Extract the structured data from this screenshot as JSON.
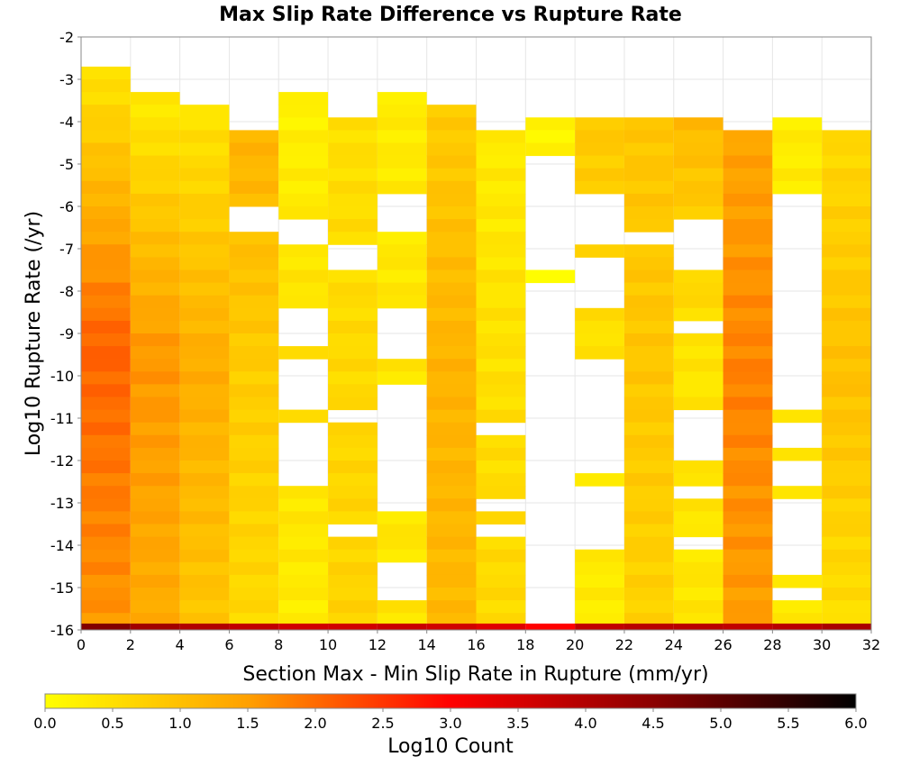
{
  "chart_data": {
    "type": "heatmap",
    "title": "Max Slip Rate Difference vs Rupture Rate",
    "xlabel": "Section Max - Min Slip Rate in Rupture (mm/yr)",
    "ylabel": "Log10 Rupture Rate (/yr)",
    "xlim": [
      0,
      32
    ],
    "ylim": [
      -16,
      -2
    ],
    "x_ticks": [
      "0",
      "2",
      "4",
      "6",
      "8",
      "10",
      "12",
      "14",
      "16",
      "18",
      "20",
      "22",
      "24",
      "26",
      "28",
      "30",
      "32"
    ],
    "y_ticks": [
      "-2",
      "-3",
      "-4",
      "-5",
      "-6",
      "-7",
      "-8",
      "-9",
      "-10",
      "-11",
      "-12",
      "-13",
      "-14",
      "-15",
      "-16"
    ],
    "x_bin_width": 2,
    "y_bin_width": 0.3,
    "grid": true,
    "colorbar": {
      "label": "Log10 Count",
      "min": 0.0,
      "max": 6.0,
      "ticks": [
        "0.0",
        "0.5",
        "1.0",
        "1.5",
        "2.0",
        "2.5",
        "3.0",
        "3.5",
        "4.0",
        "4.5",
        "5.0",
        "5.5",
        "6.0"
      ],
      "colors": [
        "#ffff00",
        "#ffa000",
        "#ff0000",
        "#8b0000",
        "#000000"
      ]
    },
    "columns": [
      {
        "x_bin": [
          0,
          2
        ],
        "y_top": -2.7,
        "y_bottom": -16,
        "gaps": [],
        "log10_count_top": 0.4,
        "log10_count_mid": 2.1,
        "log10_count_bottom": 1.6
      },
      {
        "x_bin": [
          2,
          4
        ],
        "y_top": -3.3,
        "y_bottom": -16,
        "gaps": [],
        "log10_count_top": 0.3,
        "log10_count_mid": 1.6,
        "log10_count_bottom": 1.3
      },
      {
        "x_bin": [
          4,
          6
        ],
        "y_top": -3.6,
        "y_bottom": -16,
        "gaps": [],
        "log10_count_top": 0.4,
        "log10_count_mid": 1.3,
        "log10_count_bottom": 0.9
      },
      {
        "x_bin": [
          6,
          8
        ],
        "y_top": -4.2,
        "y_bottom": -16,
        "gaps": [
          [
            -6.0,
            -6.7
          ]
        ],
        "log10_count_top": 1.2,
        "log10_count_mid": 0.8,
        "log10_count_bottom": 0.6
      },
      {
        "x_bin": [
          8,
          10
        ],
        "y_top": -3.3,
        "y_bottom": -16,
        "gaps": [
          [
            -6.2,
            -7.0
          ],
          [
            -8.4,
            -9.3
          ],
          [
            -9.6,
            -10.7
          ],
          [
            -11.1,
            -12.6
          ]
        ],
        "log10_count_top": 0.2,
        "log10_count_mid": 0.5,
        "log10_count_bottom": 0.3
      },
      {
        "x_bin": [
          10,
          12
        ],
        "y_top": -3.9,
        "y_bottom": -16,
        "gaps": [
          [
            -7.0,
            -7.6
          ],
          [
            -10.7,
            -11.0
          ],
          [
            -13.6,
            -13.9
          ]
        ],
        "log10_count_top": 0.5,
        "log10_count_mid": 0.6,
        "log10_count_bottom": 0.7
      },
      {
        "x_bin": [
          12,
          14
        ],
        "y_top": -3.3,
        "y_bottom": -16,
        "gaps": [
          [
            -5.6,
            -6.5
          ],
          [
            -8.5,
            -9.6
          ],
          [
            -10.2,
            -13.3
          ],
          [
            -14.5,
            -15.2
          ]
        ],
        "log10_count_top": 0.3,
        "log10_count_mid": 0.4,
        "log10_count_bottom": 0.4
      },
      {
        "x_bin": [
          14,
          16
        ],
        "y_top": -3.6,
        "y_bottom": -16,
        "gaps": [],
        "log10_count_top": 0.8,
        "log10_count_mid": 1.2,
        "log10_count_bottom": 1.1
      },
      {
        "x_bin": [
          16,
          18
        ],
        "y_top": -4.2,
        "y_bottom": -16,
        "gaps": [
          [
            -11.0,
            -11.3
          ],
          [
            -12.9,
            -13.2
          ],
          [
            -13.6,
            -13.9
          ]
        ],
        "log10_count_top": 0.3,
        "log10_count_mid": 0.5,
        "log10_count_bottom": 0.6
      },
      {
        "x_bin": [
          18,
          20
        ],
        "y_top": -3.9,
        "y_bottom": -16,
        "gaps": [
          [
            -4.7,
            -7.6
          ],
          [
            -7.9,
            -15.9
          ]
        ],
        "log10_count_top": 0.2,
        "log10_count_mid": 0.1,
        "log10_count_bottom": 2.7
      },
      {
        "x_bin": [
          20,
          22
        ],
        "y_top": -3.9,
        "y_bottom": -16,
        "gaps": [
          [
            -5.6,
            -7.0
          ],
          [
            -7.3,
            -8.4
          ],
          [
            -9.6,
            -12.2
          ],
          [
            -12.5,
            -14.1
          ]
        ],
        "log10_count_top": 0.9,
        "log10_count_mid": 0.4,
        "log10_count_bottom": 0.3
      },
      {
        "x_bin": [
          22,
          24
        ],
        "y_top": -3.9,
        "y_bottom": -16,
        "gaps": [
          [
            -6.7,
            -7.0
          ],
          [
            -11.9,
            -12.1
          ]
        ],
        "log10_count_top": 0.9,
        "log10_count_mid": 0.9,
        "log10_count_bottom": 0.7
      },
      {
        "x_bin": [
          24,
          26
        ],
        "y_top": -3.9,
        "y_bottom": -16,
        "gaps": [
          [
            -6.2,
            -7.6
          ],
          [
            -8.7,
            -9.0
          ],
          [
            -10.7,
            -11.9
          ],
          [
            -12.7,
            -13.0
          ],
          [
            -13.9,
            -14.2
          ]
        ],
        "log10_count_top": 1.1,
        "log10_count_mid": 0.4,
        "log10_count_bottom": 0.4
      },
      {
        "x_bin": [
          26,
          28
        ],
        "y_top": -4.2,
        "y_bottom": -16,
        "gaps": [],
        "log10_count_top": 1.4,
        "log10_count_mid": 1.8,
        "log10_count_bottom": 1.5
      },
      {
        "x_bin": [
          28,
          30
        ],
        "y_top": -3.9,
        "y_bottom": -16,
        "gaps": [
          [
            -5.6,
            -10.7
          ],
          [
            -11.0,
            -11.6
          ],
          [
            -11.9,
            -12.7
          ],
          [
            -13.0,
            -14.8
          ],
          [
            -15.1,
            -15.4
          ]
        ],
        "log10_count_top": 0.3,
        "log10_count_mid": 0.3,
        "log10_count_bottom": 0.4
      },
      {
        "x_bin": [
          30,
          32
        ],
        "y_top": -4.2,
        "y_bottom": -16,
        "gaps": [],
        "log10_count_top": 0.6,
        "log10_count_mid": 1.0,
        "log10_count_bottom": 0.5
      }
    ],
    "bottom_row": {
      "y_bin": [
        -16,
        -15.85
      ],
      "log10_count": [
        4.6,
        4.2,
        4.0,
        3.8,
        3.6,
        3.6,
        3.7,
        3.6,
        3.4,
        3.0,
        3.8,
        3.9,
        3.9,
        3.8,
        3.9,
        4.1
      ]
    }
  }
}
